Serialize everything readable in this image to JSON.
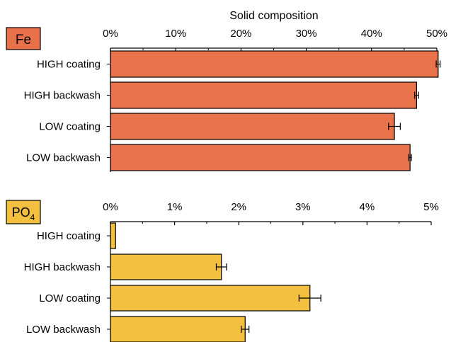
{
  "chart_data": [
    {
      "type": "bar",
      "orientation": "horizontal",
      "panel_label": "Fe",
      "panel_label_color": "#E8714A",
      "title": "Solid composition",
      "categories": [
        "HIGH coating",
        "HIGH backwash",
        "LOW coating",
        "LOW backwash"
      ],
      "values": [
        50.2,
        46.9,
        43.5,
        45.9
      ],
      "errors": [
        0.3,
        0.3,
        0.9,
        0.2
      ],
      "bar_color": "#E8734A",
      "xlim": [
        0,
        50
      ],
      "xticks": [
        0,
        10,
        20,
        30,
        40,
        50
      ],
      "xtick_labels": [
        "0%",
        "10%",
        "20%",
        "30%",
        "40%",
        "50%"
      ]
    },
    {
      "type": "bar",
      "orientation": "horizontal",
      "panel_label_main": "PO",
      "panel_label_sub": "4",
      "panel_label_color": "#F2BF3E",
      "title": "",
      "categories": [
        "HIGH coating",
        "HIGH backwash",
        "LOW coating",
        "LOW backwash"
      ],
      "values": [
        0.08,
        1.73,
        3.11,
        2.1
      ],
      "errors": [
        0.0,
        0.08,
        0.17,
        0.06
      ],
      "bar_color": "#F2BF3E",
      "xlim": [
        0,
        5
      ],
      "xticks": [
        0,
        1,
        2,
        3,
        4,
        5
      ],
      "xtick_labels": [
        "0%",
        "1%",
        "2%",
        "3%",
        "4%",
        "5%"
      ]
    }
  ]
}
